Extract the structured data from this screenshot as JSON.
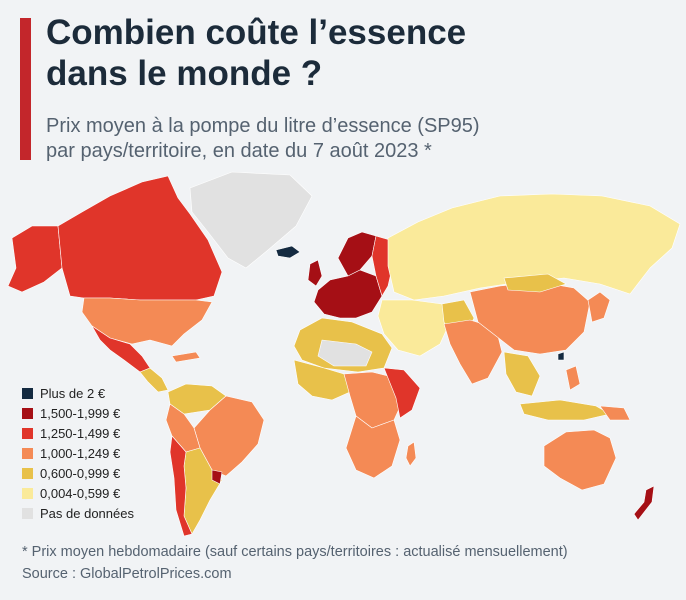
{
  "header": {
    "title_line1": "Combien coûte l’essence",
    "title_line2": "dans le monde ?",
    "subtitle_line1": "Prix moyen à la pompe du litre d’essence (SP95)",
    "subtitle_line2": "par pays/territoire, en date du 7 août 2023 *"
  },
  "legend": {
    "items": [
      {
        "label": "Plus de 2 €",
        "color": "#142a40"
      },
      {
        "label": "1,500-1,999 €",
        "color": "#a50f15"
      },
      {
        "label": "1,250-1,499 €",
        "color": "#e0352a"
      },
      {
        "label": "1,000-1,249 €",
        "color": "#f48a55"
      },
      {
        "label": "0,600-0,999 €",
        "color": "#e8c14a"
      },
      {
        "label": "0,004-0,599 €",
        "color": "#faea9a"
      },
      {
        "label": "Pas de données",
        "color": "#e1e1e1"
      }
    ]
  },
  "footer": {
    "footnote": "* Prix moyen hebdomadaire (sauf certains pays/territoires : actualisé mensuellement)",
    "source": "Source : GlobalPetrolPrices.com"
  }
}
